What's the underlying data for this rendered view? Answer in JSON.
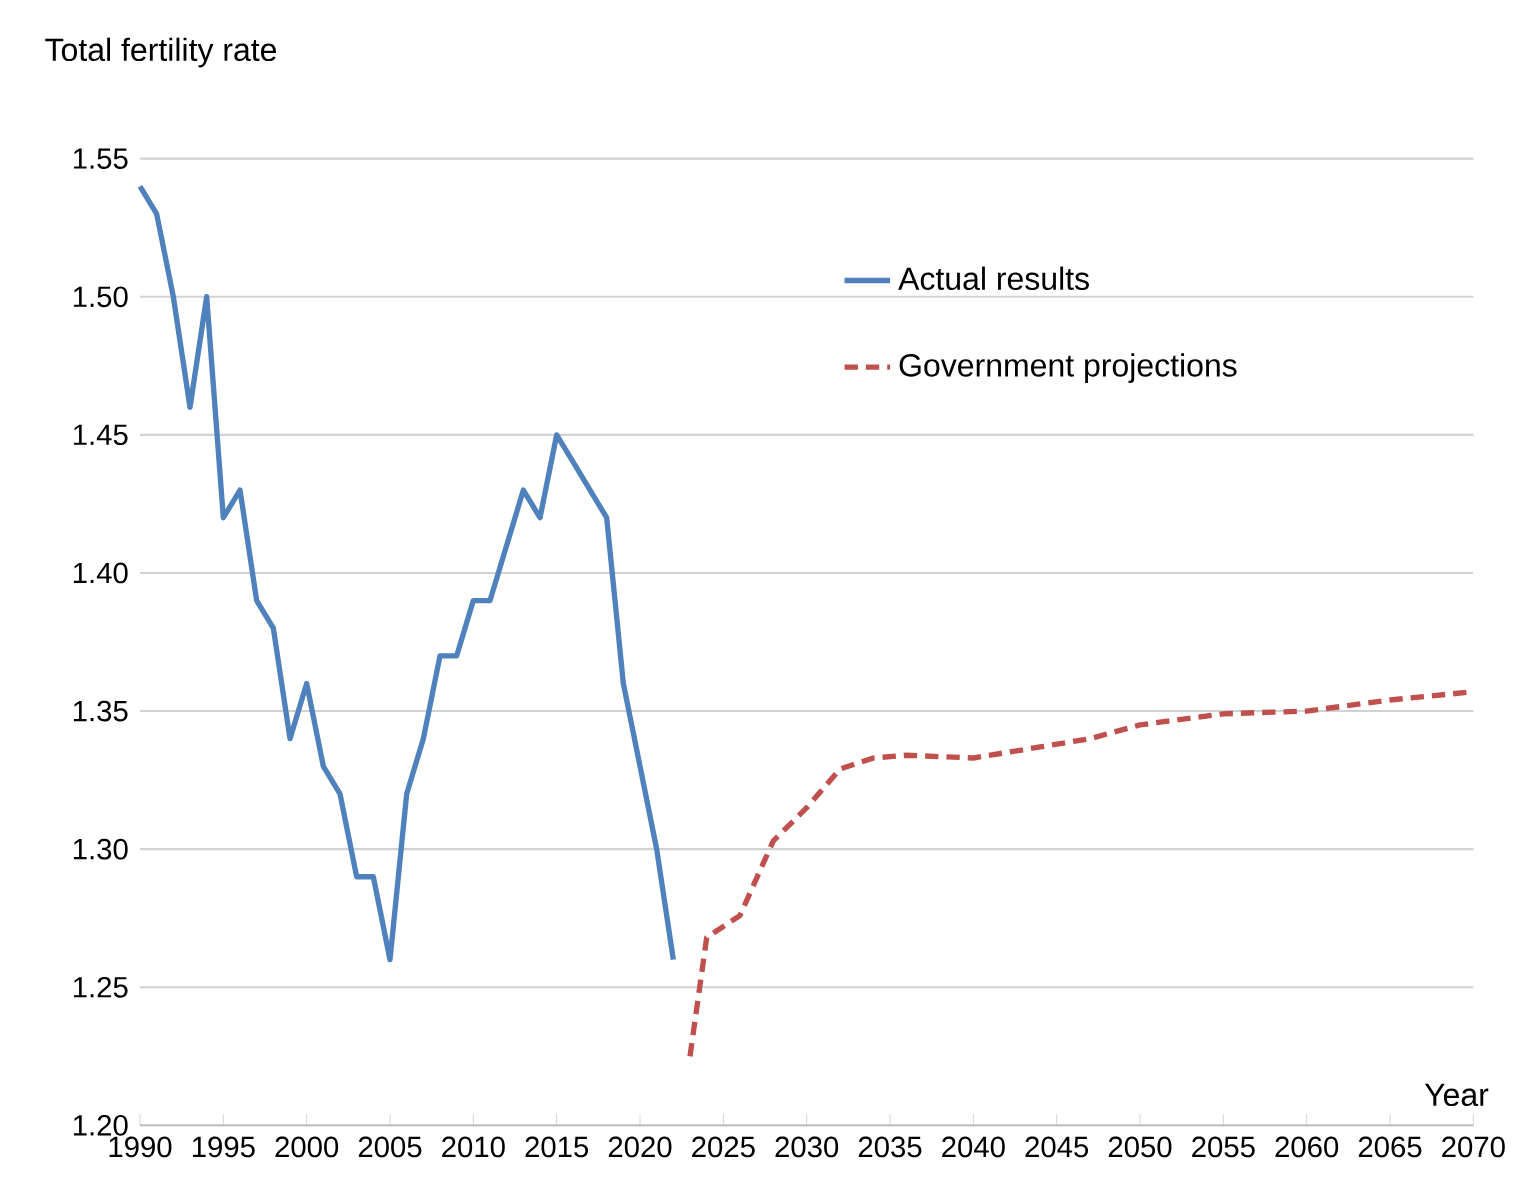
{
  "chart_data": {
    "type": "line",
    "ylabel": "Total fertility rate",
    "xlabel": "Year",
    "xlim": [
      1990,
      2070
    ],
    "xticks": [
      1990,
      1995,
      2000,
      2005,
      2010,
      2015,
      2020,
      2025,
      2030,
      2035,
      2040,
      2045,
      2050,
      2055,
      2060,
      2065,
      2070
    ],
    "ylim": [
      1.2,
      1.55
    ],
    "yticks": [
      {
        "value": 1.2,
        "label": "1.20"
      },
      {
        "value": 1.25,
        "label": "1.25"
      },
      {
        "value": 1.3,
        "label": "1.30"
      },
      {
        "value": 1.35,
        "label": "1.35"
      },
      {
        "value": 1.4,
        "label": "1.40"
      },
      {
        "value": 1.45,
        "label": "1.45"
      },
      {
        "value": 1.5,
        "label": "1.50"
      },
      {
        "value": 1.55,
        "label": "1.55"
      }
    ],
    "grid": "y",
    "legend": "top",
    "series": [
      {
        "name": "Actual results",
        "color": "#4f81bd",
        "line_style": "solid",
        "x": [
          1990,
          1991,
          1992,
          1993,
          1994,
          1995,
          1996,
          1997,
          1998,
          1999,
          2000,
          2001,
          2002,
          2003,
          2004,
          2005,
          2006,
          2007,
          2008,
          2009,
          2010,
          2011,
          2012,
          2013,
          2014,
          2015,
          2016,
          2017,
          2018,
          2019,
          2020,
          2021,
          2022
        ],
        "values": [
          1.54,
          1.53,
          1.5,
          1.46,
          1.5,
          1.42,
          1.43,
          1.39,
          1.38,
          1.34,
          1.36,
          1.33,
          1.32,
          1.29,
          1.29,
          1.26,
          1.32,
          1.34,
          1.37,
          1.37,
          1.39,
          1.39,
          1.41,
          1.43,
          1.42,
          1.45,
          1.44,
          1.43,
          1.42,
          1.36,
          1.33,
          1.3,
          1.26
        ]
      },
      {
        "name": "Government projections",
        "color": "#c0504d",
        "line_style": "dashed",
        "x": [
          2023,
          2024,
          2026,
          2028,
          2030,
          2032,
          2034,
          2036,
          2040,
          2044,
          2047,
          2050,
          2055,
          2060,
          2065,
          2070
        ],
        "values": [
          1.225,
          1.268,
          1.276,
          1.303,
          1.315,
          1.329,
          1.333,
          1.334,
          1.333,
          1.337,
          1.34,
          1.345,
          1.349,
          1.35,
          1.354,
          1.357
        ]
      }
    ]
  }
}
